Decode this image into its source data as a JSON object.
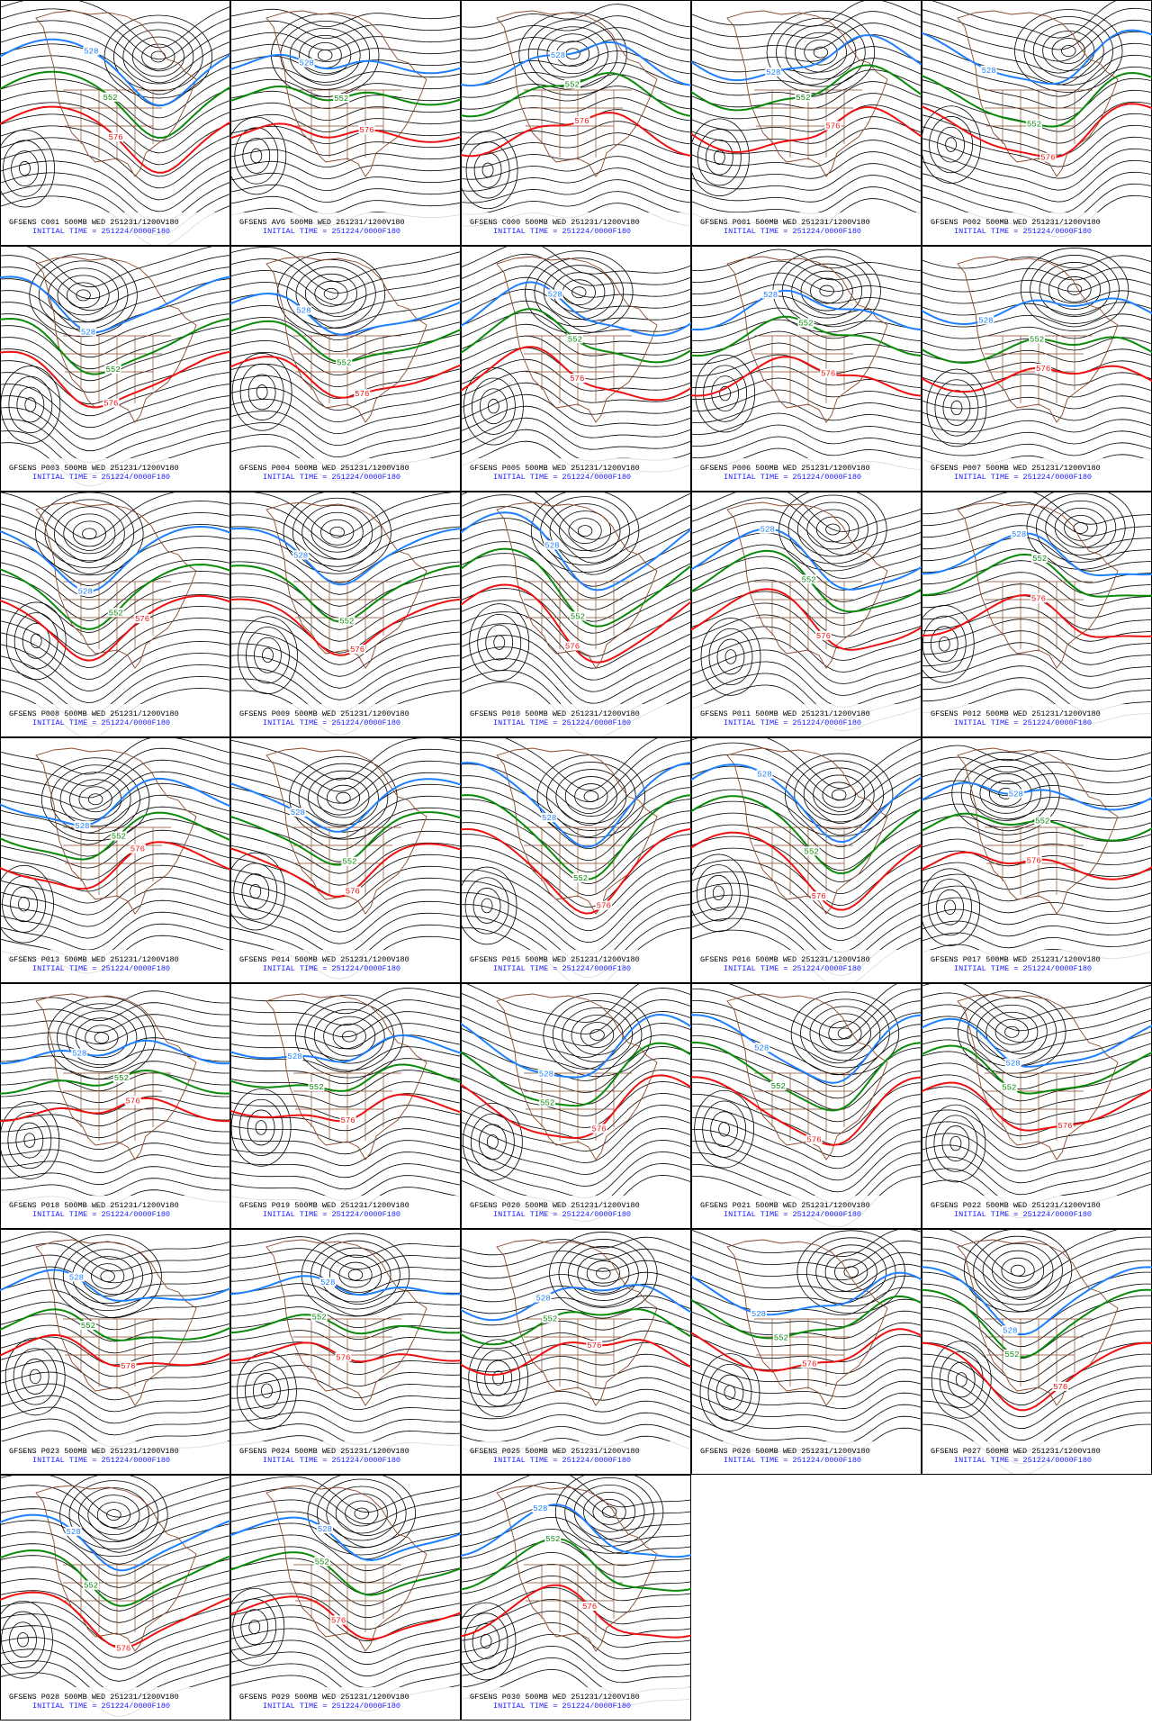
{
  "panels": [
    {
      "title": "GFSENS C001 500MB WED 251231/1200V180",
      "subtitle": "INITIAL TIME = 251224/0000F180",
      "contour_labels": [
        "528",
        "552",
        "576"
      ]
    },
    {
      "title": "GFSENS AVG 500MB WED 251231/1200V180",
      "subtitle": "INITIAL TIME = 251224/0000F180",
      "contour_labels": [
        "528",
        "552",
        "576"
      ]
    },
    {
      "title": "GFSENS C000 500MB WED 251231/1200V180",
      "subtitle": "INITIAL TIME = 251224/0000F180",
      "contour_labels": [
        "528",
        "552",
        "576"
      ]
    },
    {
      "title": "GFSENS P001 500MB WED 251231/1200V180",
      "subtitle": "INITIAL TIME = 251224/0000F180",
      "contour_labels": [
        "528",
        "552",
        "576"
      ]
    },
    {
      "title": "GFSENS P002 500MB WED 251231/1200V180",
      "subtitle": "INITIAL TIME = 251224/0000F180",
      "contour_labels": [
        "528",
        "552",
        "576"
      ]
    },
    {
      "title": "GFSENS P003 500MB WED 251231/1200V180",
      "subtitle": "INITIAL TIME = 251224/0000F180",
      "contour_labels": [
        "528",
        "552",
        "576"
      ]
    },
    {
      "title": "GFSENS P004 500MB WED 251231/1200V180",
      "subtitle": "INITIAL TIME = 251224/0000F180",
      "contour_labels": [
        "528",
        "552",
        "576"
      ]
    },
    {
      "title": "GFSENS P005 500MB WED 251231/1200V180",
      "subtitle": "INITIAL TIME = 251224/0000F180",
      "contour_labels": [
        "528",
        "552",
        "576"
      ]
    },
    {
      "title": "GFSENS P006 500MB WED 251231/1200V180",
      "subtitle": "INITIAL TIME = 251224/0000F180",
      "contour_labels": [
        "528",
        "552",
        "576"
      ]
    },
    {
      "title": "GFSENS P007 500MB WED 251231/1200V180",
      "subtitle": "INITIAL TIME = 251224/0000F180",
      "contour_labels": [
        "528",
        "552",
        "576"
      ]
    },
    {
      "title": "GFSENS P008 500MB WED 251231/1200V180",
      "subtitle": "INITIAL TIME = 251224/0000F180",
      "contour_labels": [
        "528",
        "552",
        "576"
      ]
    },
    {
      "title": "GFSENS P009 500MB WED 251231/1200V180",
      "subtitle": "INITIAL TIME = 251224/0000F180",
      "contour_labels": [
        "528",
        "552",
        "576"
      ]
    },
    {
      "title": "GFSENS P010 500MB WED 251231/1200V180",
      "subtitle": "INITIAL TIME = 251224/0000F180",
      "contour_labels": [
        "528",
        "552",
        "576"
      ]
    },
    {
      "title": "GFSENS P011 500MB WED 251231/1200V180",
      "subtitle": "INITIAL TIME = 251224/0000F180",
      "contour_labels": [
        "528",
        "552",
        "576"
      ]
    },
    {
      "title": "GFSENS P012 500MB WED 251231/1200V180",
      "subtitle": "INITIAL TIME = 251224/0000F180",
      "contour_labels": [
        "528",
        "552",
        "576"
      ]
    },
    {
      "title": "GFSENS P013 500MB WED 251231/1200V180",
      "subtitle": "INITIAL TIME = 251224/0000F180",
      "contour_labels": [
        "528",
        "552",
        "576"
      ]
    },
    {
      "title": "GFSENS P014 500MB WED 251231/1200V180",
      "subtitle": "INITIAL TIME = 251224/0000F180",
      "contour_labels": [
        "528",
        "552",
        "576"
      ]
    },
    {
      "title": "GFSENS P015 500MB WED 251231/1200V180",
      "subtitle": "INITIAL TIME = 251224/0000F180",
      "contour_labels": [
        "528",
        "552",
        "576"
      ]
    },
    {
      "title": "GFSENS P016 500MB WED 251231/1200V180",
      "subtitle": "INITIAL TIME = 251224/0000F180",
      "contour_labels": [
        "528",
        "552",
        "576"
      ]
    },
    {
      "title": "GFSENS P017 500MB WED 251231/1200V180",
      "subtitle": "INITIAL TIME = 251224/0000F180",
      "contour_labels": [
        "528",
        "552",
        "576"
      ]
    },
    {
      "title": "GFSENS P018 500MB WED 251231/1200V180",
      "subtitle": "INITIAL TIME = 251224/0000F180",
      "contour_labels": [
        "528",
        "552",
        "576"
      ]
    },
    {
      "title": "GFSENS P019 500MB WED 251231/1200V180",
      "subtitle": "INITIAL TIME = 251224/0000F180",
      "contour_labels": [
        "528",
        "552",
        "576"
      ]
    },
    {
      "title": "GFSENS P020 500MB WED 251231/1200V180",
      "subtitle": "INITIAL TIME = 251224/0000F180",
      "contour_labels": [
        "528",
        "552",
        "576"
      ]
    },
    {
      "title": "GFSENS P021 500MB WED 251231/1200V180",
      "subtitle": "INITIAL TIME = 251224/0000F180",
      "contour_labels": [
        "528",
        "552",
        "576"
      ]
    },
    {
      "title": "GFSENS P022 500MB WED 251231/1200V180",
      "subtitle": "INITIAL TIME = 251224/0000F180",
      "contour_labels": [
        "528",
        "552",
        "576"
      ]
    },
    {
      "title": "GFSENS P023 500MB WED 251231/1200V180",
      "subtitle": "INITIAL TIME = 251224/0000F180",
      "contour_labels": [
        "528",
        "552",
        "576"
      ]
    },
    {
      "title": "GFSENS P024 500MB WED 251231/1200V180",
      "subtitle": "INITIAL TIME = 251224/0000F180",
      "contour_labels": [
        "528",
        "552",
        "576"
      ]
    },
    {
      "title": "GFSENS P025 500MB WED 251231/1200V180",
      "subtitle": "INITIAL TIME = 251224/0000F180",
      "contour_labels": [
        "528",
        "552",
        "576"
      ]
    },
    {
      "title": "GFSENS P026 500MB WED 251231/1200V180",
      "subtitle": "INITIAL TIME = 251224/0000F180",
      "contour_labels": [
        "528",
        "552",
        "576"
      ]
    },
    {
      "title": "GFSENS P027 500MB WED 251231/1200V180",
      "subtitle": "INITIAL TIME = 251224/0000F180",
      "contour_labels": [
        "528",
        "552",
        "576"
      ]
    },
    {
      "title": "GFSENS P028 500MB WED 251231/1200V180",
      "subtitle": "INITIAL TIME = 251224/0000F180",
      "contour_labels": [
        "528",
        "552",
        "576"
      ]
    },
    {
      "title": "GFSENS P029 500MB WED 251231/1200V180",
      "subtitle": "INITIAL TIME = 251224/0000F180",
      "contour_labels": [
        "528",
        "552",
        "576"
      ]
    },
    {
      "title": "GFSENS P030 500MB WED 251231/1200V180",
      "subtitle": "INITIAL TIME = 251224/0000F180",
      "contour_labels": [
        "528",
        "552",
        "576"
      ]
    }
  ]
}
